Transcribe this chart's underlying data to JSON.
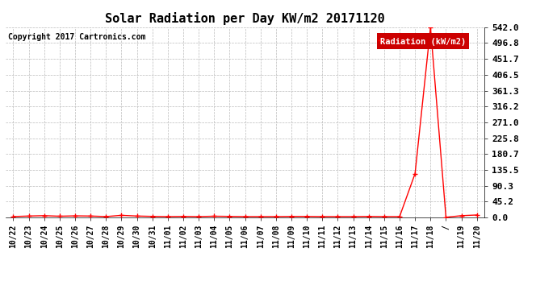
{
  "title": "Solar Radiation per Day KW/m2 20171120",
  "copyright_text": "Copyright 2017 Cartronics.com",
  "legend_label": "Radiation (kW/m2)",
  "background_color": "#ffffff",
  "grid_color": "#bbbbbb",
  "line_color": "#ff0000",
  "line_width": 1.0,
  "marker": "+",
  "marker_size": 4,
  "marker_edge_width": 1.0,
  "x_labels": [
    "10/22",
    "10/23",
    "10/24",
    "10/25",
    "10/26",
    "10/27",
    "10/28",
    "10/29",
    "10/30",
    "10/31",
    "11/01",
    "11/02",
    "11/03",
    "11/04",
    "11/05",
    "11/06",
    "11/07",
    "11/08",
    "11/09",
    "11/10",
    "11/11",
    "11/12",
    "11/13",
    "11/14",
    "11/15",
    "11/16",
    "11/17",
    "11/18",
    "/",
    "11/19",
    "11/20"
  ],
  "y_values": [
    2.5,
    4.0,
    5.0,
    3.5,
    4.5,
    4.0,
    2.5,
    6.0,
    4.0,
    3.0,
    2.5,
    3.0,
    2.5,
    3.5,
    3.0,
    2.5,
    2.5,
    2.5,
    3.0,
    3.0,
    2.5,
    2.5,
    2.5,
    3.0,
    2.5,
    2.5,
    125.0,
    542.0,
    0.5,
    5.0,
    7.0
  ],
  "ylim": [
    0.0,
    542.0
  ],
  "y_ticks": [
    0.0,
    45.2,
    90.3,
    135.5,
    180.7,
    225.8,
    271.0,
    316.2,
    361.3,
    406.5,
    451.7,
    496.8,
    542.0
  ],
  "legend_bg": "#cc0000",
  "legend_text_color": "#ffffff",
  "title_fontsize": 11,
  "copyright_fontsize": 7,
  "tick_fontsize": 7,
  "ytick_fontsize": 8
}
